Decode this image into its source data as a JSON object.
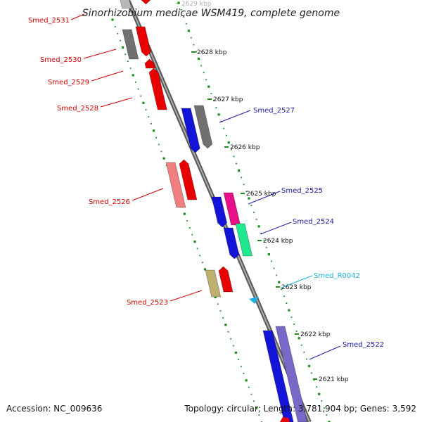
{
  "title": "Sinorhizobium medicae WSM419, complete genome",
  "footer": {
    "accession": "Accession: NC_009636",
    "topology": "Topology: circular; Length: 3,781,904 bp; Genes: 3,592"
  },
  "colors": {
    "backbone": "#8c8c8c",
    "tick_dots": "#1a8f1a",
    "label_red": "#d40000",
    "label_blue": "#1a1aa8",
    "label_cyan": "#1ab0d8"
  },
  "kbp_ticks": [
    {
      "label": "2629 kbp",
      "faded": true
    },
    {
      "label": "2628 kbp"
    },
    {
      "label": "2627 kbp"
    },
    {
      "label": "2626 kbp"
    },
    {
      "label": "2625 kbp"
    },
    {
      "label": "2624 kbp"
    },
    {
      "label": "2623 kbp"
    },
    {
      "label": "2622 kbp"
    },
    {
      "label": "2621 kbp"
    }
  ],
  "genes": [
    {
      "id": "Smed_2531",
      "label": "Smed_2531",
      "strand": "left",
      "color": "#d40000"
    },
    {
      "id": "Smed_2530",
      "label": "Smed_2530",
      "strand": "left",
      "color": "#d40000"
    },
    {
      "id": "Smed_2529",
      "label": "Smed_2529",
      "strand": "left",
      "color": "#d40000"
    },
    {
      "id": "Smed_2528",
      "label": "Smed_2528",
      "strand": "left",
      "color": "#d40000"
    },
    {
      "id": "Smed_2527",
      "label": "Smed_2527",
      "strand": "right",
      "color": "#1a1aa8"
    },
    {
      "id": "Smed_2526",
      "label": "Smed_2526",
      "strand": "left",
      "color": "#d40000"
    },
    {
      "id": "Smed_2525",
      "label": "Smed_2525",
      "strand": "right",
      "color": "#1a1aa8"
    },
    {
      "id": "Smed_2524",
      "label": "Smed_2524",
      "strand": "right",
      "color": "#1a1aa8"
    },
    {
      "id": "Smed_R0042",
      "label": "Smed_R0042",
      "strand": "right",
      "color": "#1ab0d8"
    },
    {
      "id": "Smed_2523",
      "label": "Smed_2523",
      "strand": "left",
      "color": "#d40000"
    },
    {
      "id": "Smed_2522",
      "label": "Smed_2522",
      "strand": "right",
      "color": "#1a1aa8"
    }
  ]
}
